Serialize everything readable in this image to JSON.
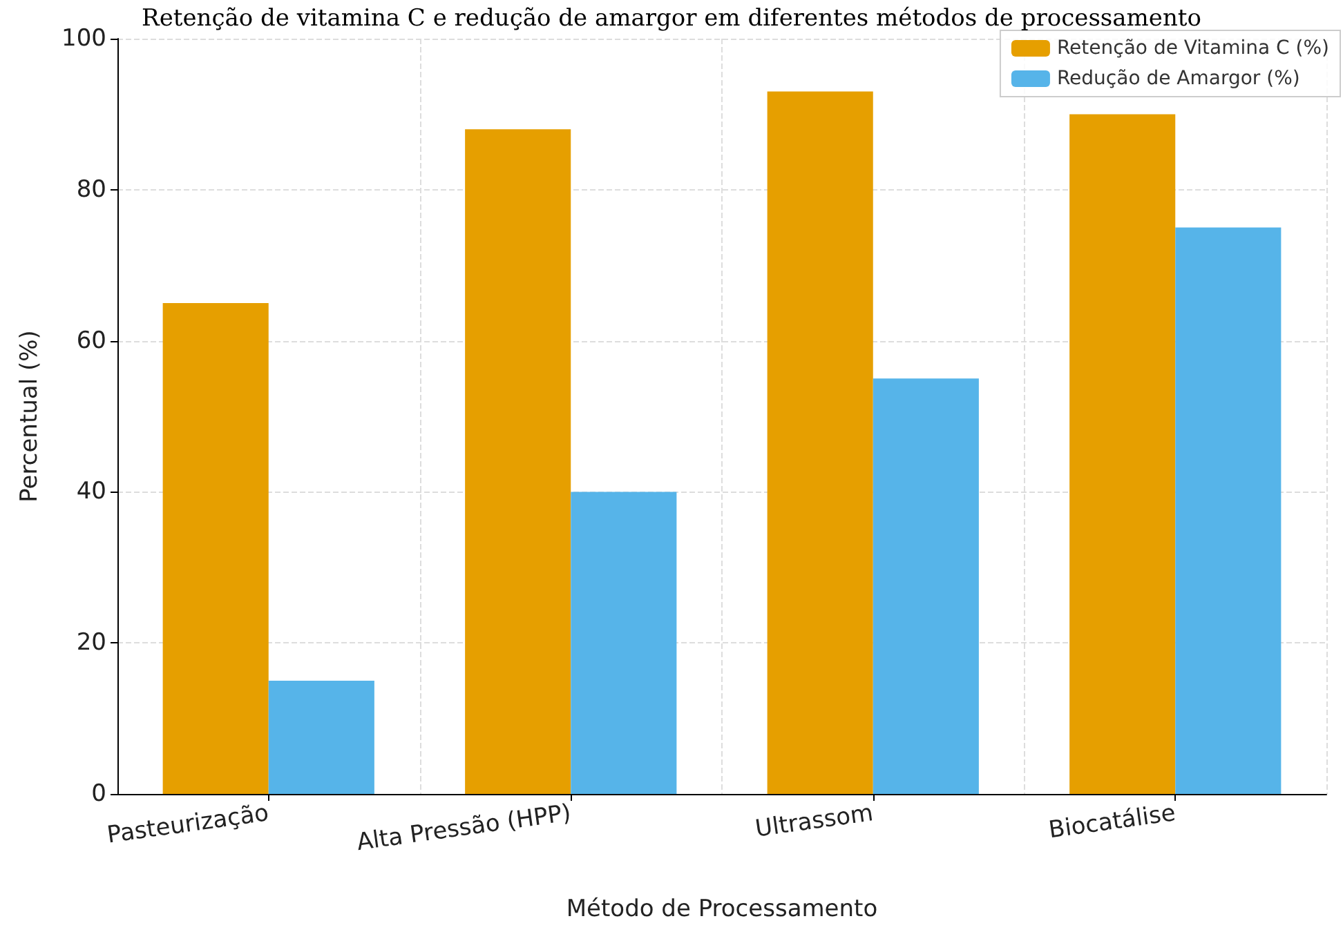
{
  "chart_data": {
    "type": "bar",
    "title": "Retenção de vitamina C e redução de amargor em diferentes métodos de processamento",
    "xlabel": "Método de Processamento",
    "ylabel": "Percentual (%)",
    "categories": [
      "Pasteurização",
      "Alta Pressão (HPP)",
      "Ultrassom",
      "Biocatálise"
    ],
    "series": [
      {
        "name": "Retenção de Vitamina C (%)",
        "color": "#e69f00",
        "values": [
          65,
          88,
          93,
          90
        ]
      },
      {
        "name": "Redução de Amargor (%)",
        "color": "#56b4e9",
        "values": [
          15,
          40,
          55,
          75
        ]
      }
    ],
    "ylim": [
      0,
      100
    ],
    "yticks": [
      0,
      20,
      40,
      60,
      80,
      100
    ],
    "grid": true,
    "legend": "top right"
  }
}
